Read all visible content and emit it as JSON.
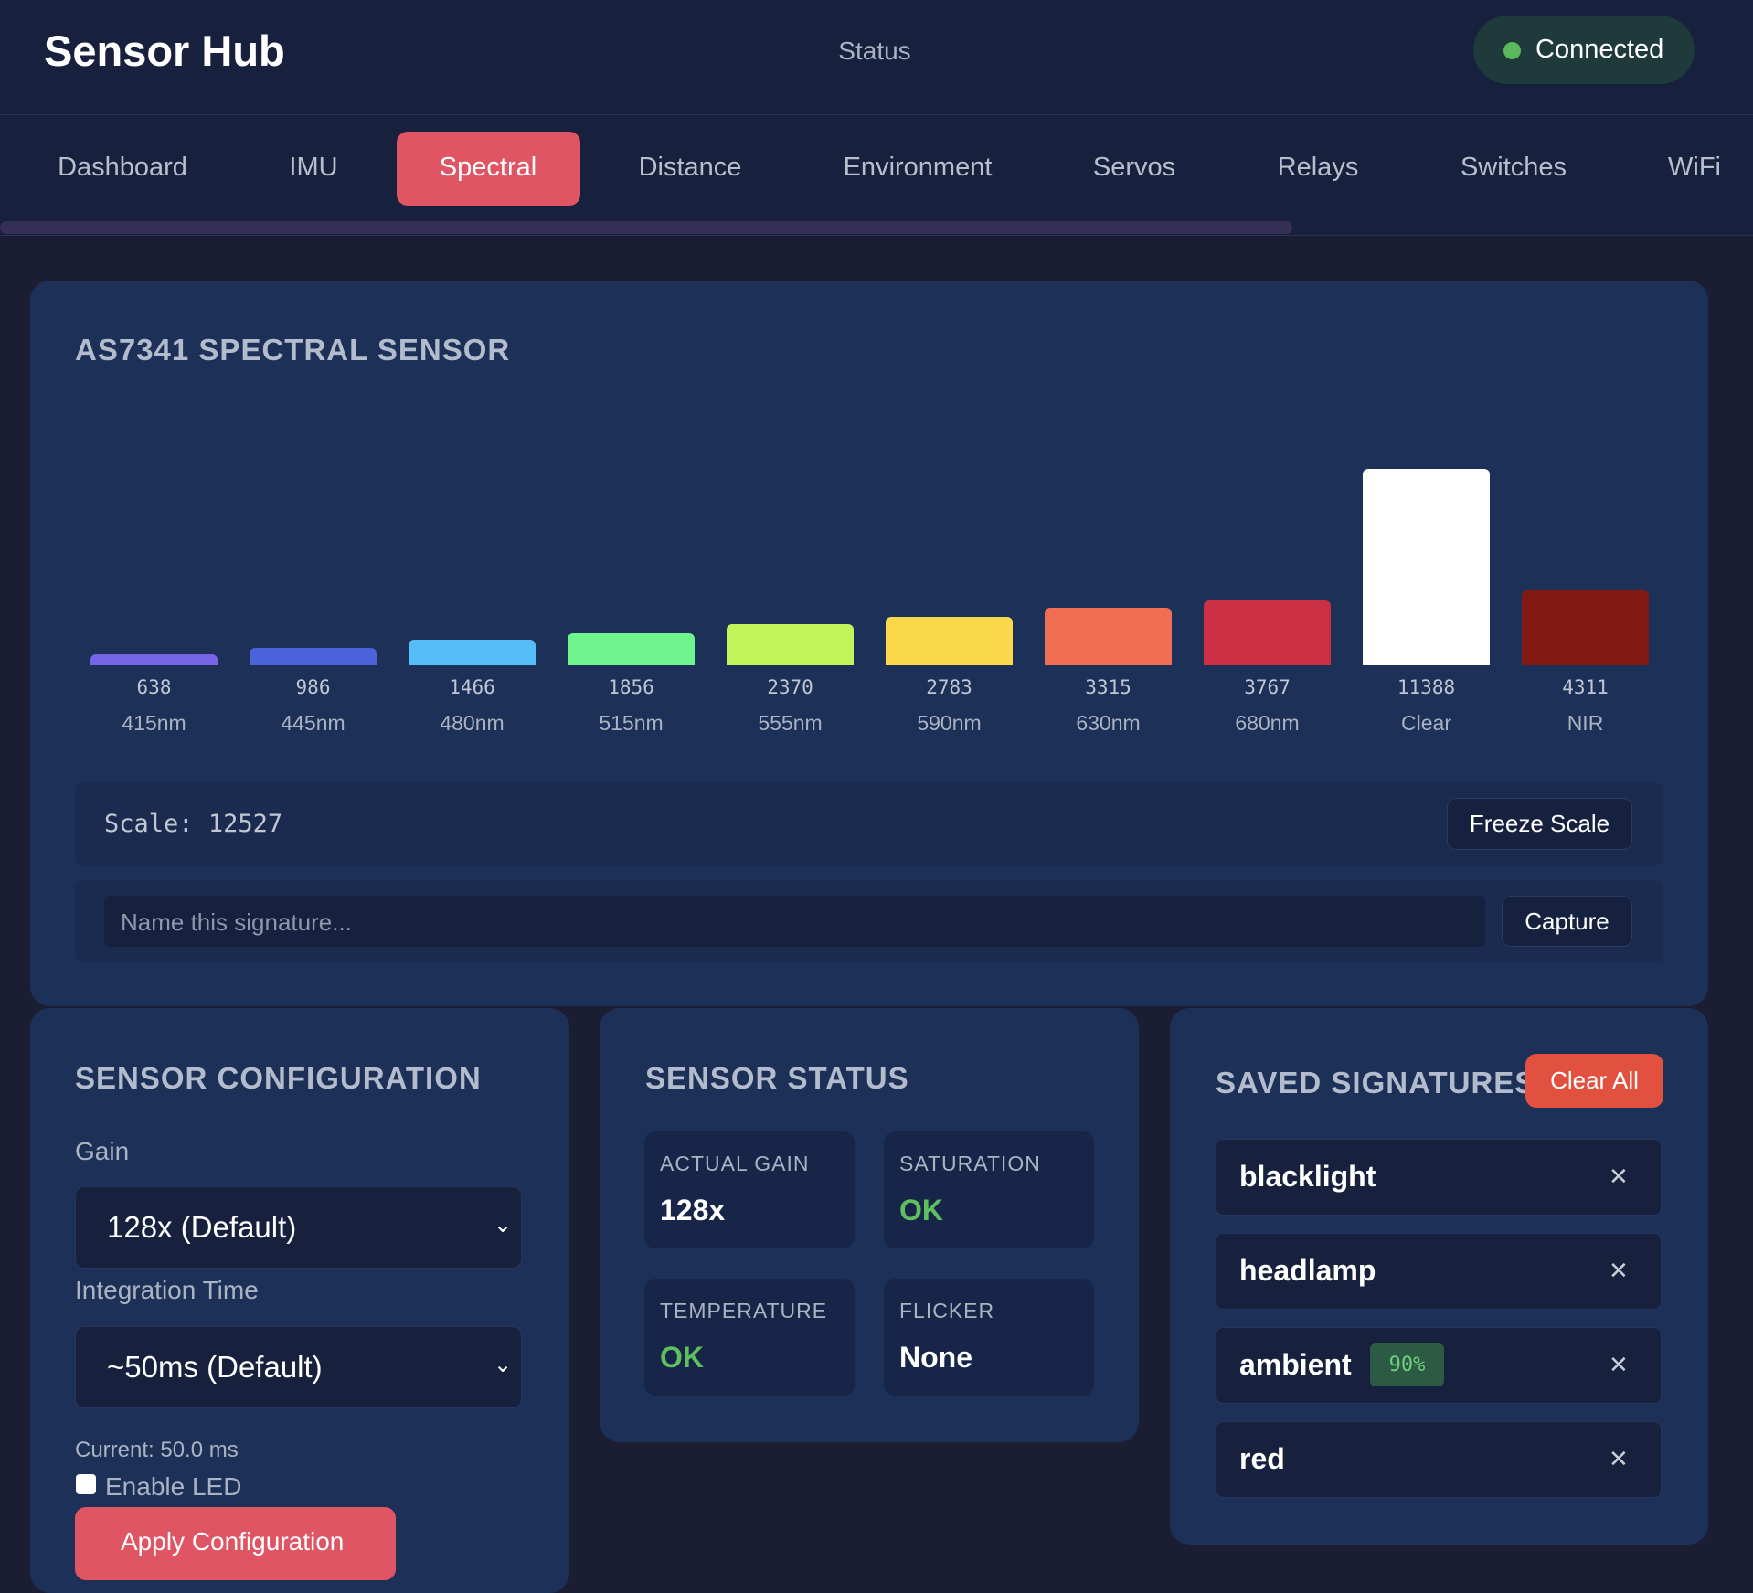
{
  "header": {
    "title": "Sensor Hub",
    "status": "Status",
    "connection": "Connected"
  },
  "tabs": {
    "items": [
      "Dashboard",
      "IMU",
      "Spectral",
      "Distance",
      "Environment",
      "Servos",
      "Relays",
      "Switches",
      "WiFi"
    ],
    "active": 2
  },
  "spectral": {
    "title": "AS7341 SPECTRAL SENSOR",
    "scale_label": "Scale:",
    "scale": 12527,
    "freeze": "Freeze Scale",
    "name_placeholder": "Name this signature...",
    "capture": "Capture",
    "chart_data": {
      "type": "bar",
      "categories": [
        "415nm",
        "445nm",
        "480nm",
        "515nm",
        "555nm",
        "590nm",
        "630nm",
        "680nm",
        "Clear",
        "NIR"
      ],
      "values": [
        638,
        986,
        1466,
        1856,
        2370,
        2783,
        3315,
        3767,
        11388,
        4311
      ],
      "colors": [
        "#7764e6",
        "#4c62d8",
        "#55bdf7",
        "#6ff58d",
        "#c1f65a",
        "#f9d84b",
        "#ef6e54",
        "#cb2f43",
        "#ffffff",
        "#821912"
      ]
    }
  },
  "config": {
    "title": "SENSOR CONFIGURATION",
    "gain_label": "Gain",
    "gain": "128x (Default)",
    "integration_label": "Integration Time",
    "integration": "~50ms (Default)",
    "current": "Current: 50.0 ms",
    "led": "Enable LED",
    "apply": "Apply Configuration"
  },
  "status": {
    "title": "SENSOR STATUS",
    "tiles": [
      {
        "label": "ACTUAL GAIN",
        "value": "128x",
        "color": "#ffffff"
      },
      {
        "label": "SATURATION",
        "value": "OK",
        "color": "#5fbf5f"
      },
      {
        "label": "TEMPERATURE",
        "value": "OK",
        "color": "#5fbf5f"
      },
      {
        "label": "FLICKER",
        "value": "None",
        "color": "#ffffff"
      }
    ]
  },
  "signatures": {
    "title": "SAVED SIGNATURES",
    "clear": "Clear All",
    "items": [
      {
        "name": "blacklight"
      },
      {
        "name": "headlamp"
      },
      {
        "name": "ambient",
        "match": "90%"
      },
      {
        "name": "red"
      }
    ],
    "remove": "✕"
  }
}
